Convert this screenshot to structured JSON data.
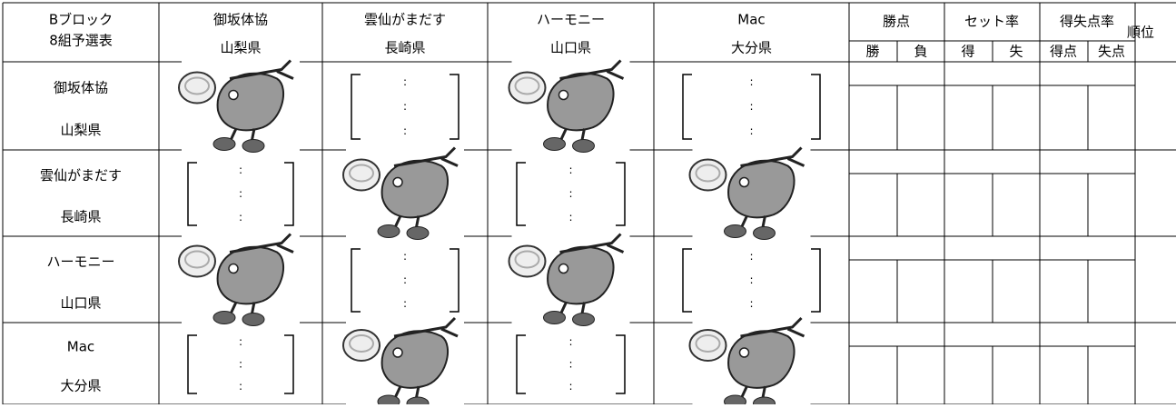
{
  "header": {
    "block": "Bブロック",
    "group": "8組予選表"
  },
  "teams": [
    {
      "name": "御坂体協",
      "pref": "山梨県"
    },
    {
      "name": "雲仙がまだす",
      "pref": "長崎県"
    },
    {
      "name": "ハーモニー",
      "pref": "山口県"
    },
    {
      "name": "Mac",
      "pref": "大分県"
    }
  ],
  "stats_headers": {
    "points": "勝点",
    "win": "勝",
    "loss": "負",
    "set_rate": "セット率",
    "set_win": "得",
    "set_loss": "失",
    "score_rate": "得失点率",
    "score_for": "得点",
    "score_against": "失点",
    "rank": "順位"
  },
  "match_cell": {
    "separator": ":"
  }
}
